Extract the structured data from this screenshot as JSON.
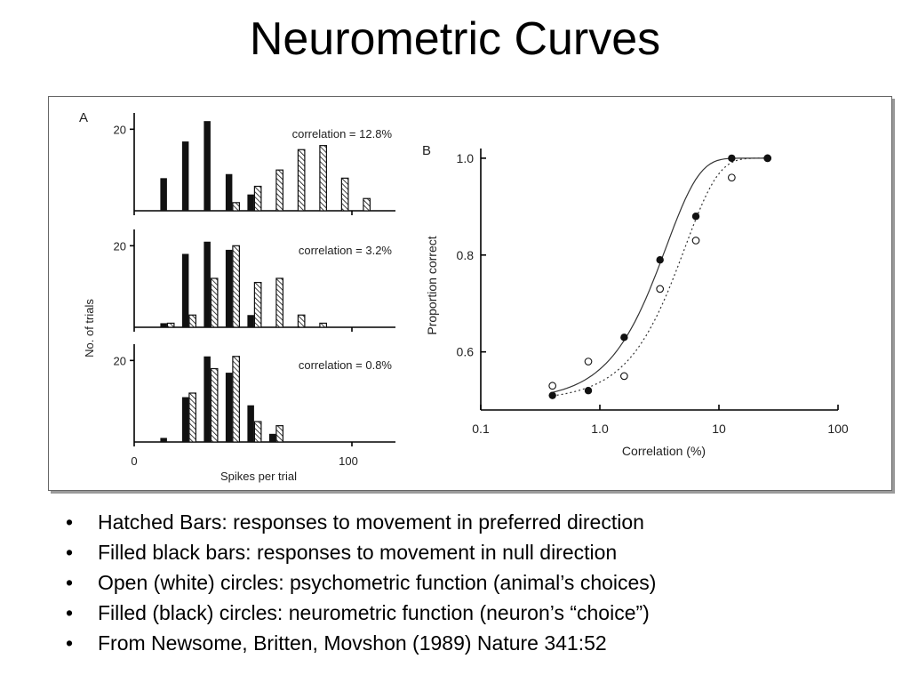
{
  "title": "Neurometric Curves",
  "bullets": [
    "Hatched Bars: responses to movement in preferred direction",
    "Filled black bars: responses to movement in null direction",
    "Open (white) circles: psychometric function (animal’s choices)",
    "Filled (black) circles: neurometric function (neuron’s “choice”)",
    "From Newsome, Britten, Movshon (1989) Nature 341:52"
  ],
  "chart_data": [
    {
      "type": "bar",
      "panel_label": "A",
      "xlabel": "Spikes per trial",
      "ylabel": "No. of trials",
      "xlim": [
        0,
        120
      ],
      "ylim": [
        0,
        24
      ],
      "x_ticks": [
        "0",
        "100"
      ],
      "y_tick_label": "20",
      "legend": [
        "hatched: preferred direction",
        "filled: null direction"
      ],
      "subplots": [
        {
          "annotation": "correlation = 12.8%",
          "bin_starts": [
            12,
            22,
            32,
            42,
            52,
            62,
            72,
            82,
            92,
            102
          ],
          "series": [
            {
              "name": "null",
              "values": [
                8,
                17,
                22,
                9,
                4,
                0,
                0,
                0,
                0,
                0
              ]
            },
            {
              "name": "preferred",
              "values": [
                0,
                0,
                0,
                2,
                6,
                10,
                15,
                16,
                8,
                3
              ]
            }
          ]
        },
        {
          "annotation": "correlation = 3.2%",
          "bin_starts": [
            12,
            22,
            32,
            42,
            52,
            62,
            72,
            82
          ],
          "series": [
            {
              "name": "null",
              "values": [
                1,
                18,
                21,
                19,
                3,
                0,
                0,
                0
              ]
            },
            {
              "name": "preferred",
              "values": [
                1,
                3,
                12,
                20,
                11,
                12,
                3,
                1
              ]
            }
          ]
        },
        {
          "annotation": "correlation = 0.8%",
          "bin_starts": [
            12,
            22,
            32,
            42,
            52,
            62
          ],
          "series": [
            {
              "name": "null",
              "values": [
                1,
                11,
                21,
                17,
                9,
                2
              ]
            },
            {
              "name": "preferred",
              "values": [
                0,
                12,
                18,
                21,
                5,
                4
              ]
            }
          ]
        }
      ]
    },
    {
      "type": "scatter",
      "panel_label": "B",
      "xlabel": "Correlation (%)",
      "ylabel": "Proportion correct",
      "xscale": "log",
      "xlim": [
        0.1,
        100
      ],
      "ylim": [
        0.48,
        1.02
      ],
      "x_ticks": [
        {
          "value": 0.1,
          "label": "0.1"
        },
        {
          "value": 1,
          "label": "1.0"
        },
        {
          "value": 10,
          "label": "10"
        },
        {
          "value": 100,
          "label": "100"
        }
      ],
      "y_ticks": [
        {
          "value": 0.6,
          "label": "0.6"
        },
        {
          "value": 0.8,
          "label": "0.8"
        },
        {
          "value": 1.0,
          "label": "1.0"
        }
      ],
      "series": [
        {
          "name": "neurometric (filled circles)",
          "x": [
            0.4,
            0.8,
            1.6,
            3.2,
            6.4,
            12.8,
            25.6
          ],
          "y": [
            0.51,
            0.52,
            0.63,
            0.79,
            0.88,
            1.0,
            1.0
          ]
        },
        {
          "name": "psychometric (open circles)",
          "x": [
            0.4,
            0.8,
            1.6,
            3.2,
            6.4,
            12.8,
            25.6
          ],
          "y": [
            0.53,
            0.58,
            0.55,
            0.73,
            0.83,
            0.96,
            1.0
          ]
        }
      ],
      "fit_lines": [
        {
          "series": "neurometric",
          "style": "solid"
        },
        {
          "series": "psychometric",
          "style": "dotted"
        }
      ]
    }
  ]
}
